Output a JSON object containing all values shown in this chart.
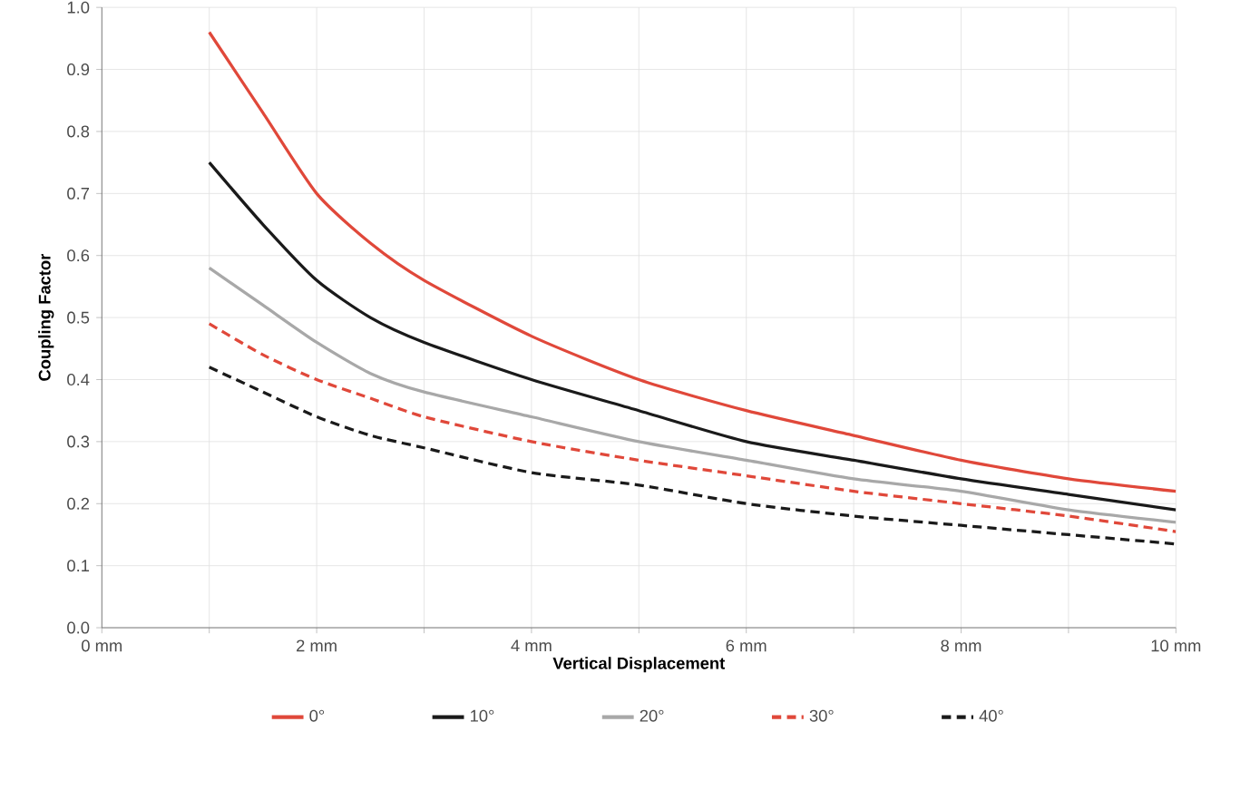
{
  "chart_data": {
    "type": "line",
    "xlabel": "Vertical Displacement",
    "ylabel": "Coupling Factor",
    "x": [
      1,
      1.5,
      2,
      2.5,
      3,
      4,
      5,
      6,
      7,
      8,
      9,
      10
    ],
    "series": [
      {
        "name": "0°",
        "color": "#e0483a",
        "line_style": "solid",
        "values": [
          0.96,
          0.83,
          0.7,
          0.62,
          0.56,
          0.47,
          0.4,
          0.35,
          0.31,
          0.27,
          0.24,
          0.22
        ]
      },
      {
        "name": "10°",
        "color": "#1a1a1a",
        "line_style": "solid",
        "values": [
          0.75,
          0.65,
          0.56,
          0.5,
          0.46,
          0.4,
          0.35,
          0.3,
          0.27,
          0.24,
          0.215,
          0.19
        ]
      },
      {
        "name": "20°",
        "color": "#a8a8a8",
        "line_style": "solid",
        "values": [
          0.58,
          0.52,
          0.46,
          0.41,
          0.38,
          0.34,
          0.3,
          0.27,
          0.24,
          0.22,
          0.19,
          0.17
        ]
      },
      {
        "name": "30°",
        "color": "#e0483a",
        "line_style": "dashed",
        "values": [
          0.49,
          0.44,
          0.4,
          0.37,
          0.34,
          0.3,
          0.27,
          0.245,
          0.22,
          0.2,
          0.18,
          0.155
        ]
      },
      {
        "name": "40°",
        "color": "#1a1a1a",
        "line_style": "dashed",
        "values": [
          0.42,
          0.38,
          0.34,
          0.31,
          0.29,
          0.25,
          0.23,
          0.2,
          0.18,
          0.165,
          0.15,
          0.135
        ]
      }
    ],
    "xlim": [
      0,
      10
    ],
    "xticks": [
      {
        "value": 0,
        "label": "0 mm"
      },
      {
        "value": 1,
        "label": null
      },
      {
        "value": 2,
        "label": "2 mm"
      },
      {
        "value": 3,
        "label": null
      },
      {
        "value": 4,
        "label": "4 mm"
      },
      {
        "value": 5,
        "label": null
      },
      {
        "value": 6,
        "label": "6 mm"
      },
      {
        "value": 7,
        "label": null
      },
      {
        "value": 8,
        "label": "8 mm"
      },
      {
        "value": 9,
        "label": null
      },
      {
        "value": 10,
        "label": "10 mm"
      }
    ],
    "ylim": [
      0,
      1
    ],
    "yticks": [
      {
        "value": 0,
        "label": "0.0"
      },
      {
        "value": 0.1,
        "label": "0.1"
      },
      {
        "value": 0.2,
        "label": "0.2"
      },
      {
        "value": 0.3,
        "label": "0.3"
      },
      {
        "value": 0.4,
        "label": "0.4"
      },
      {
        "value": 0.5,
        "label": "0.5"
      },
      {
        "value": 0.6,
        "label": "0.6"
      },
      {
        "value": 0.7,
        "label": "0.7"
      },
      {
        "value": 0.8,
        "label": "0.8"
      },
      {
        "value": 0.9,
        "label": "0.9"
      },
      {
        "value": 1,
        "label": "1.0"
      }
    ],
    "grid": true,
    "legend": "bottom"
  }
}
